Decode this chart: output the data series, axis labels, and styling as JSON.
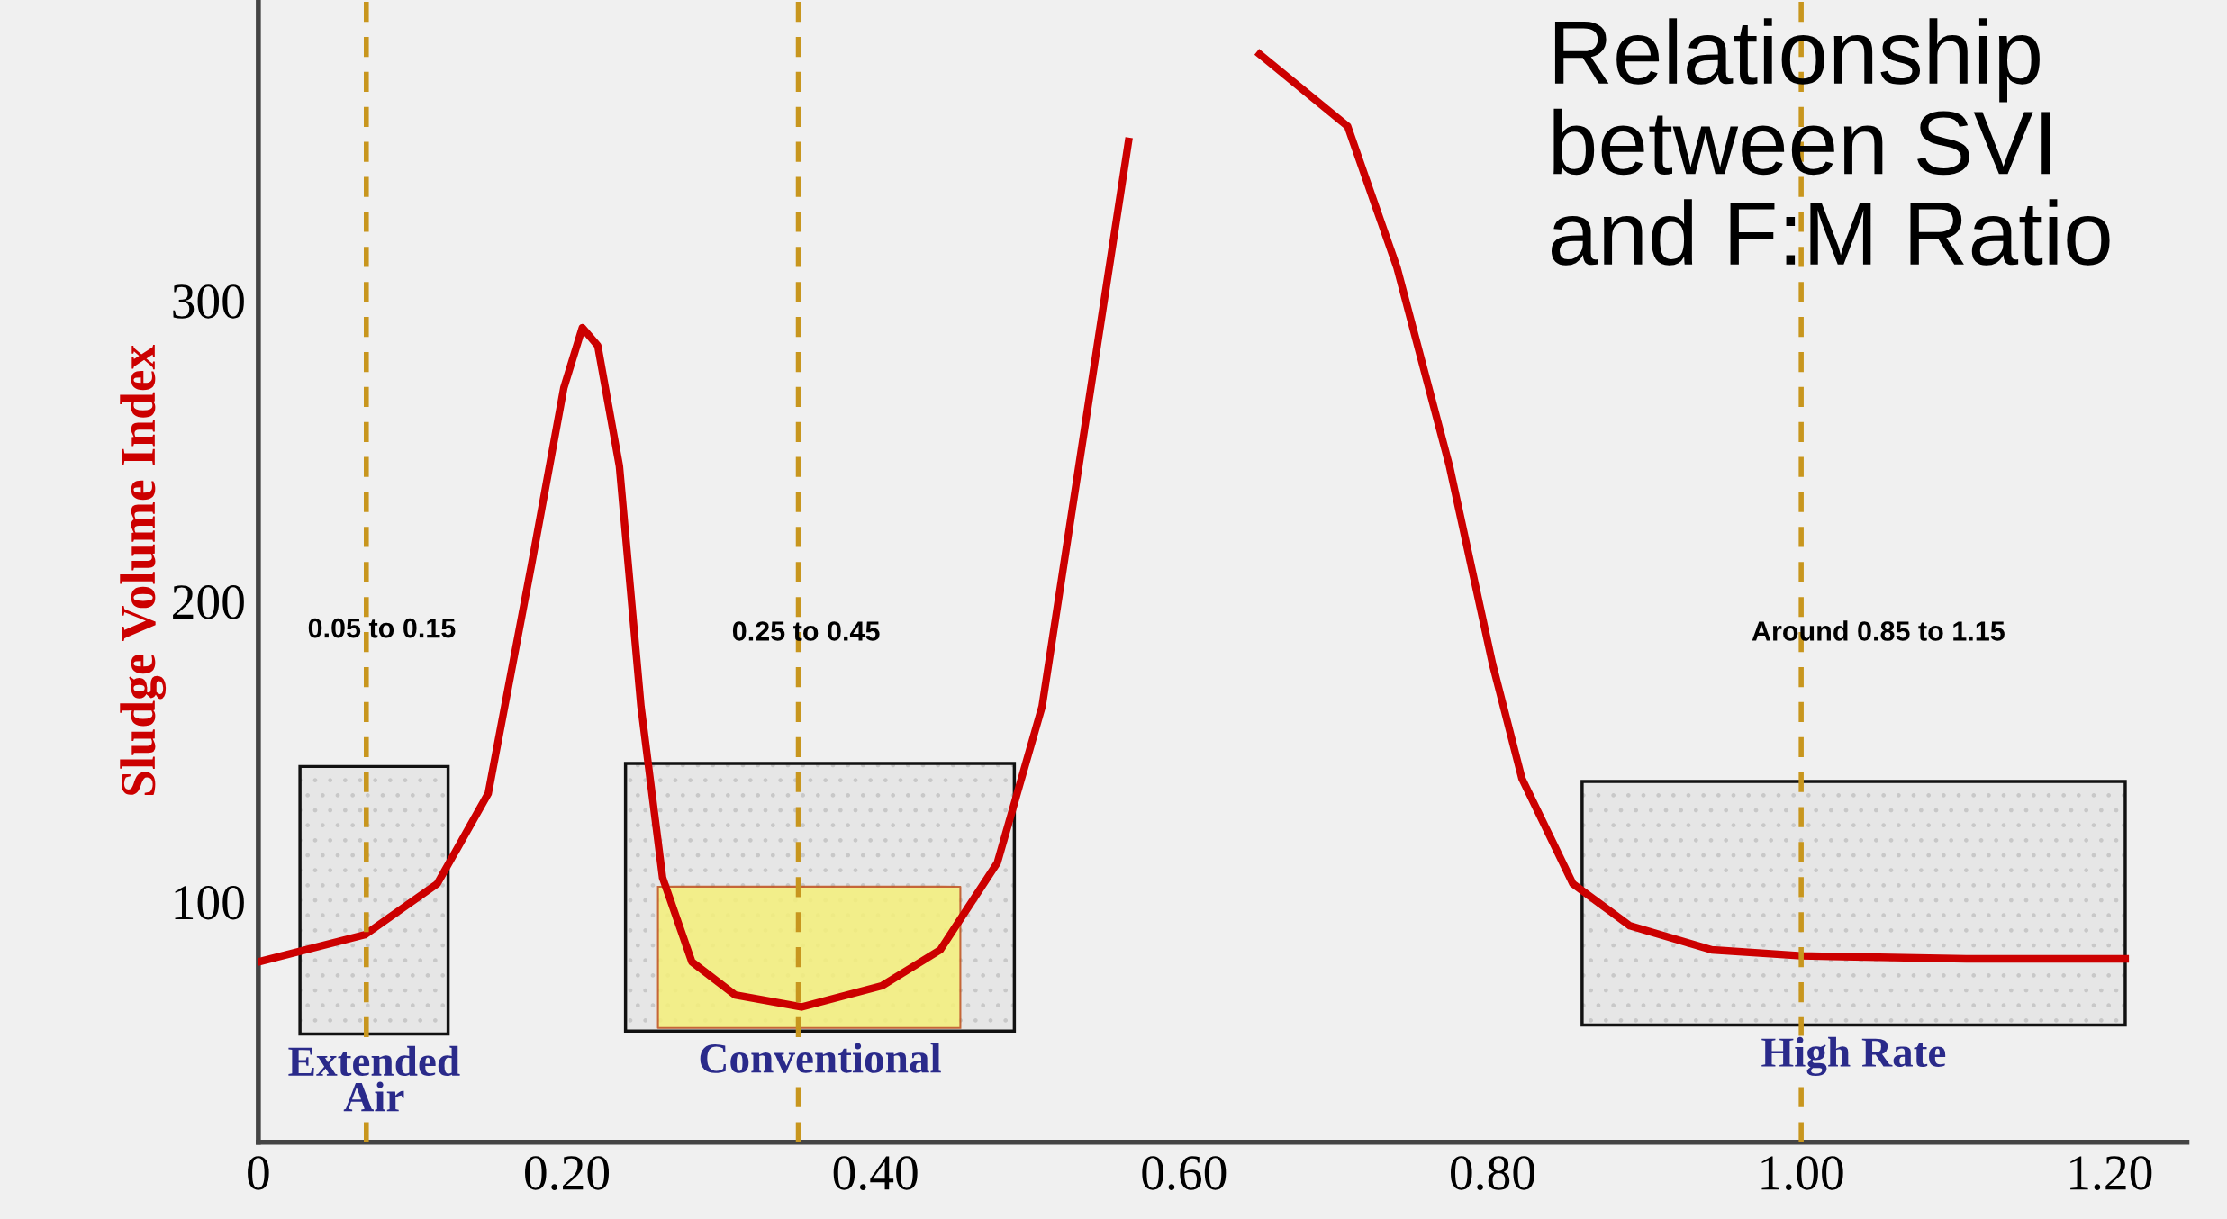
{
  "chart_data": {
    "type": "line",
    "title": "Relationship between SVI and F:M Ratio",
    "ylabel": "Sludge Volume Index",
    "xlim": [
      0,
      1.25
    ],
    "ylim": [
      20,
      400
    ],
    "xticks": [
      0,
      {
        "value": 0.2,
        "label": "0.20"
      },
      {
        "value": 0.4,
        "label": "0.40"
      },
      {
        "value": 0.6,
        "label": "0.60"
      },
      {
        "value": 0.8,
        "label": "0.80"
      },
      {
        "value": 1.0,
        "label": "1.00"
      },
      {
        "value": 1.2,
        "label": "1.20"
      }
    ],
    "yticks": [
      100,
      200,
      300
    ],
    "series": [
      {
        "color": "#cc0000",
        "x": [
          0,
          0.069,
          0.116,
          0.149,
          0.177,
          0.198,
          0.21,
          0.22,
          0.234,
          0.248,
          0.262,
          0.281,
          0.309,
          0.352,
          0.404,
          0.442,
          0.479,
          0.508,
          0.536,
          0.564,
          0.588,
          0.611,
          0.649,
          0.706,
          0.738,
          0.772,
          0.8,
          0.819,
          0.852,
          0.889,
          0.942,
          1.0,
          1.107,
          1.21
        ],
        "values": [
          80,
          89,
          106,
          136,
          212,
          271,
          291,
          285,
          245,
          165,
          108,
          80,
          69,
          65,
          72,
          84,
          113,
          165,
          259,
          353,
          null,
          null,
          382,
          358,
          311,
          245,
          179,
          141,
          106,
          92,
          84,
          82,
          81,
          81
        ]
      }
    ],
    "ref_lines": [
      {
        "axis": "x",
        "value": 0.07,
        "color": "#c8961e",
        "line_style": "dashed"
      },
      {
        "axis": "x",
        "value": 0.35,
        "color": "#c8961e",
        "line_style": "dashed"
      },
      {
        "axis": "x",
        "value": 1.0,
        "color": "#c8961e",
        "line_style": "dashed"
      }
    ],
    "bands": [
      {
        "axis": "x",
        "from": 0.027,
        "to": 0.123,
        "label": "Extended\nAir",
        "color": "#e6e6e6"
      },
      {
        "axis": "x",
        "from": 0.238,
        "to": 0.49,
        "label": "Conventional",
        "color": "#e6e6e6"
      },
      {
        "axis": "x",
        "from": 0.858,
        "to": 1.21,
        "label": "High Rate",
        "color": "#e6e6e6"
      },
      {
        "axis": "x",
        "from": 0.259,
        "to": 0.455,
        "color": "#f5f07a"
      }
    ],
    "annotations": [
      "0.05 to 0.15",
      "0.25 to 0.45",
      "Around 0.85 to 1.15"
    ]
  }
}
